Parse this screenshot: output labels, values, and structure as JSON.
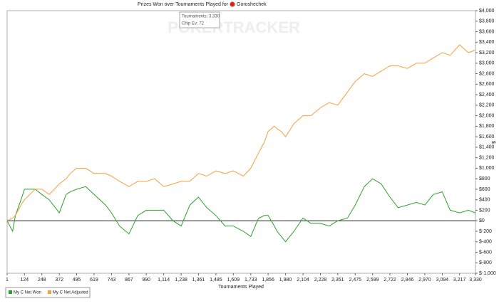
{
  "chart_data": {
    "type": "line",
    "title": "Prizes Won over Tournaments Played for",
    "player": "Goroshechek",
    "watermark": "POKERTRACKER",
    "tooltip": [
      "Tournaments: 3,330",
      "Chip Ev: 72"
    ],
    "x_label": "Tournaments Played",
    "y_label": "$",
    "x": [
      1,
      40,
      60,
      100,
      124,
      200,
      248,
      300,
      372,
      420,
      450,
      495,
      560,
      619,
      680,
      700,
      743,
      800,
      867,
      930,
      990,
      1050,
      1114,
      1180,
      1238,
      1300,
      1361,
      1420,
      1485,
      1550,
      1609,
      1680,
      1733,
      1780,
      1790,
      1830,
      1856,
      1900,
      1920,
      1950,
      1980,
      2040,
      2104,
      2160,
      2228,
      2290,
      2351,
      2420,
      2475,
      2540,
      2599,
      2660,
      2722,
      2780,
      2846,
      2910,
      2970,
      3030,
      3094,
      3150,
      3217,
      3280,
      3330
    ],
    "series": [
      {
        "name": "My C Net Won",
        "color": "#2ca02c",
        "values": [
          0,
          -200,
          100,
          400,
          600,
          600,
          500,
          400,
          150,
          500,
          550,
          600,
          650,
          500,
          350,
          300,
          150,
          -100,
          -250,
          100,
          200,
          200,
          200,
          0,
          -100,
          300,
          450,
          250,
          100,
          -100,
          -100,
          -200,
          -300,
          0,
          50,
          100,
          100,
          -100,
          -200,
          -300,
          -400,
          -200,
          50,
          -50,
          -50,
          -100,
          0,
          50,
          300,
          650,
          800,
          700,
          450,
          250,
          300,
          350,
          300,
          500,
          550,
          200,
          150,
          200,
          150
        ]
      },
      {
        "name": "My C Net Adjusted",
        "color": "#f5a03c",
        "values": [
          0,
          50,
          100,
          300,
          400,
          600,
          600,
          500,
          700,
          800,
          900,
          1000,
          1000,
          900,
          900,
          900,
          850,
          750,
          650,
          750,
          750,
          800,
          650,
          700,
          750,
          750,
          900,
          850,
          950,
          900,
          950,
          850,
          1000,
          1250,
          1300,
          1500,
          1700,
          1800,
          1750,
          1700,
          1600,
          1850,
          2000,
          2000,
          2150,
          2250,
          2200,
          2450,
          2650,
          2800,
          2750,
          2850,
          2950,
          2950,
          2900,
          3000,
          3000,
          3100,
          3200,
          3150,
          3350,
          3200,
          3250
        ]
      }
    ],
    "xlim": [
      1,
      3330
    ],
    "xticks": [
      1,
      124,
      248,
      372,
      495,
      619,
      743,
      867,
      990,
      {
        "value": 1114,
        "label": "1,114"
      },
      {
        "value": 1238,
        "label": "1,238"
      },
      {
        "value": 1361,
        "label": "1,361"
      },
      {
        "value": 1485,
        "label": "1,485"
      },
      {
        "value": 1609,
        "label": "1,609"
      },
      {
        "value": 1733,
        "label": "1,733"
      },
      {
        "value": 1856,
        "label": "1,856"
      },
      {
        "value": 1980,
        "label": "1,980"
      },
      {
        "value": 2104,
        "label": "2,104"
      },
      {
        "value": 2228,
        "label": "2,228"
      },
      {
        "value": 2351,
        "label": "2,351"
      },
      {
        "value": 2475,
        "label": "2,475"
      },
      {
        "value": 2599,
        "label": "2,599"
      },
      {
        "value": 2722,
        "label": "2,722"
      },
      {
        "value": 2846,
        "label": "2,846"
      },
      {
        "value": 2970,
        "label": "2,970"
      },
      {
        "value": 3094,
        "label": "3,094"
      },
      {
        "value": 3217,
        "label": "3,217"
      },
      {
        "value": 3330,
        "label": "3,330"
      }
    ],
    "ylim": [
      -1000,
      4000
    ],
    "yticks": [
      {
        "value": -1000,
        "label": "$-1,000"
      },
      {
        "value": -800,
        "label": "$-800"
      },
      {
        "value": -600,
        "label": "$-600"
      },
      {
        "value": -400,
        "label": "$-400"
      },
      {
        "value": -200,
        "label": "$-200"
      },
      {
        "value": 0,
        "label": "$0"
      },
      {
        "value": 200,
        "label": "$200"
      },
      {
        "value": 400,
        "label": "$400"
      },
      {
        "value": 600,
        "label": "$600"
      },
      {
        "value": 800,
        "label": "$800"
      },
      {
        "value": 1000,
        "label": "$1,000"
      },
      {
        "value": 1200,
        "label": "$1,200"
      },
      {
        "value": 1400,
        "label": "$1,400"
      },
      {
        "value": 1600,
        "label": "$1,600"
      },
      {
        "value": 1800,
        "label": "$1,800"
      },
      {
        "value": 2000,
        "label": "$2,000"
      },
      {
        "value": 2200,
        "label": "$2,200"
      },
      {
        "value": 2400,
        "label": "$2,400"
      },
      {
        "value": 2600,
        "label": "$2,600"
      },
      {
        "value": 2800,
        "label": "$2,800"
      },
      {
        "value": 3000,
        "label": "$3,000"
      },
      {
        "value": 3200,
        "label": "$3,200"
      },
      {
        "value": 3400,
        "label": "$3,400"
      },
      {
        "value": 3600,
        "label": "$3,600"
      },
      {
        "value": 3800,
        "label": "$3,800"
      },
      {
        "value": 4000,
        "label": "$4,000"
      }
    ],
    "grid": false,
    "zero_line": true,
    "legend": "bottom-left"
  }
}
